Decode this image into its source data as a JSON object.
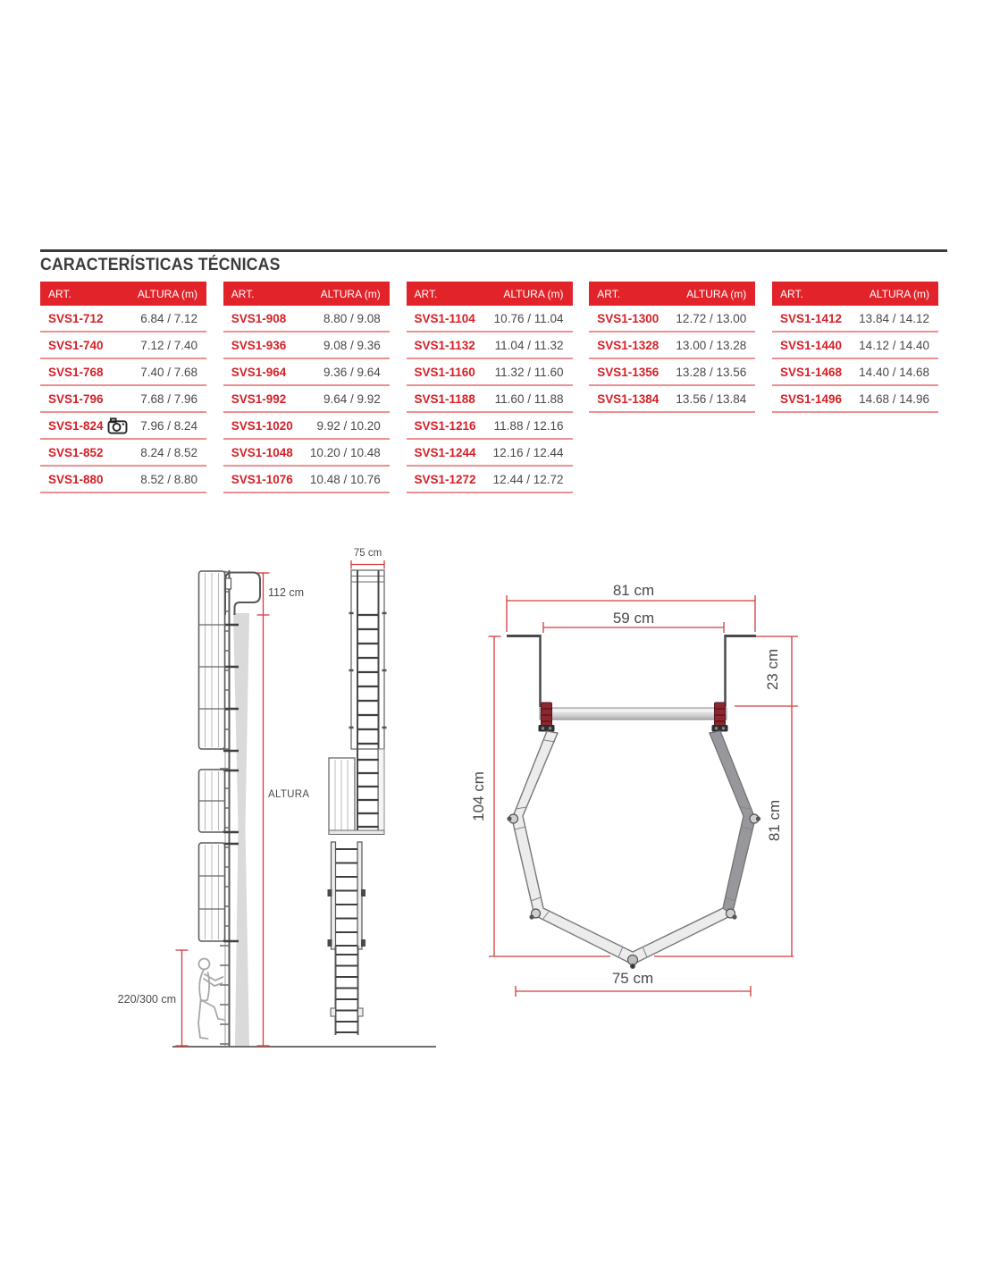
{
  "title": "CARACTERÍSTICAS TÉCNICAS",
  "colors": {
    "header_red": "#e2242a",
    "article_red": "#d61f26",
    "separator_red": "#ee8f91",
    "dimension_red": "#d6393c",
    "text_dark": "#3b3b3d"
  },
  "tables": [
    {
      "headers": {
        "art": "ART.",
        "altura": "ALTURA (m)"
      },
      "rows": [
        {
          "art": "SVS1-712",
          "altura": "6.84 / 7.12"
        },
        {
          "art": "SVS1-740",
          "altura": "7.12 / 7.40"
        },
        {
          "art": "SVS1-768",
          "altura": "7.40 / 7.68"
        },
        {
          "art": "SVS1-796",
          "altura": "7.68 / 7.96"
        },
        {
          "art": "SVS1-824",
          "altura": "7.96 / 8.24",
          "camera": true
        },
        {
          "art": "SVS1-852",
          "altura": "8.24 / 8.52"
        },
        {
          "art": "SVS1-880",
          "altura": "8.52 / 8.80"
        }
      ]
    },
    {
      "headers": {
        "art": "ART.",
        "altura": "ALTURA (m)"
      },
      "rows": [
        {
          "art": "SVS1-908",
          "altura": "8.80 / 9.08"
        },
        {
          "art": "SVS1-936",
          "altura": "9.08 / 9.36"
        },
        {
          "art": "SVS1-964",
          "altura": "9.36 / 9.64"
        },
        {
          "art": "SVS1-992",
          "altura": "9.64 / 9.92"
        },
        {
          "art": "SVS1-1020",
          "altura": "9.92 / 10.20"
        },
        {
          "art": "SVS1-1048",
          "altura": "10.20 / 10.48"
        },
        {
          "art": "SVS1-1076",
          "altura": "10.48 / 10.76"
        }
      ]
    },
    {
      "headers": {
        "art": "ART.",
        "altura": "ALTURA (m)"
      },
      "rows": [
        {
          "art": "SVS1-1104",
          "altura": "10.76 / 11.04"
        },
        {
          "art": "SVS1-1132",
          "altura": "11.04 / 11.32"
        },
        {
          "art": "SVS1-1160",
          "altura": "11.32 / 11.60"
        },
        {
          "art": "SVS1-1188",
          "altura": "11.60 / 11.88"
        },
        {
          "art": "SVS1-1216",
          "altura": "11.88 / 12.16"
        },
        {
          "art": "SVS1-1244",
          "altura": "12.16 / 12.44"
        },
        {
          "art": "SVS1-1272",
          "altura": "12.44 / 12.72"
        }
      ]
    },
    {
      "headers": {
        "art": "ART.",
        "altura": "ALTURA (m)"
      },
      "rows": [
        {
          "art": "SVS1-1300",
          "altura": "12.72 / 13.00"
        },
        {
          "art": "SVS1-1328",
          "altura": "13.00 / 13.28"
        },
        {
          "art": "SVS1-1356",
          "altura": "13.28 / 13.56"
        },
        {
          "art": "SVS1-1384",
          "altura": "13.56 / 13.84"
        }
      ]
    },
    {
      "headers": {
        "art": "ART.",
        "altura": "ALTURA (m)"
      },
      "rows": [
        {
          "art": "SVS1-1412",
          "altura": "13.84 / 14.12"
        },
        {
          "art": "SVS1-1440",
          "altura": "14.12 / 14.40"
        },
        {
          "art": "SVS1-1468",
          "altura": "14.40 / 14.68"
        },
        {
          "art": "SVS1-1496",
          "altura": "14.68 / 14.96"
        }
      ]
    }
  ],
  "diagrams": {
    "side_view": {
      "dim_top": "112 cm",
      "dim_height": "ALTURA",
      "dim_bottom": "220/300 cm"
    },
    "front_view": {
      "dim_width": "75 cm"
    },
    "top_view": {
      "dim_outer_width": "81 cm",
      "dim_inner_width": "59 cm",
      "dim_offset": "23 cm",
      "dim_total_height": "104 cm",
      "dim_cage_height": "81 cm",
      "dim_bottom_width": "75 cm"
    }
  }
}
